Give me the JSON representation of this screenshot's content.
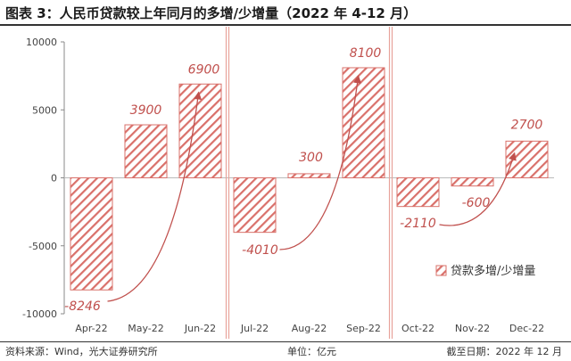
{
  "title": "图表 3：人民币贷款较上年同月的多增/少增量（2022 年 4-12 月）",
  "footer": {
    "source": "资料来源：Wind，光大证券研究所",
    "unit": "单位：亿元",
    "asof": "截至日期：2022 年 12 月"
  },
  "colors": {
    "bar": "#d9706a",
    "separator": "#e8a39b",
    "arrow": "#c0504d"
  },
  "chart_data": {
    "type": "bar",
    "categories": [
      "Apr-22",
      "May-22",
      "Jun-22",
      "Jul-22",
      "Aug-22",
      "Sep-22",
      "Oct-22",
      "Nov-22",
      "Dec-22"
    ],
    "series": [
      {
        "name": "贷款多增/少增量",
        "values": [
          -8246,
          3900,
          6900,
          -4010,
          300,
          8100,
          -2110,
          -600,
          2700
        ]
      }
    ],
    "data_labels": [
      "-8246",
      "3900",
      "6900",
      "-4010",
      "300",
      "8100",
      "-2110",
      "-600",
      "2700"
    ],
    "yticks": [
      "10000",
      "5000",
      "0",
      "-5000",
      "-10000"
    ],
    "ylim": [
      -10000,
      10000
    ],
    "groups": [
      [
        0,
        1,
        2
      ],
      [
        3,
        4,
        5
      ],
      [
        6,
        7,
        8
      ]
    ],
    "legend_position": "bottom-right",
    "grid": false
  }
}
